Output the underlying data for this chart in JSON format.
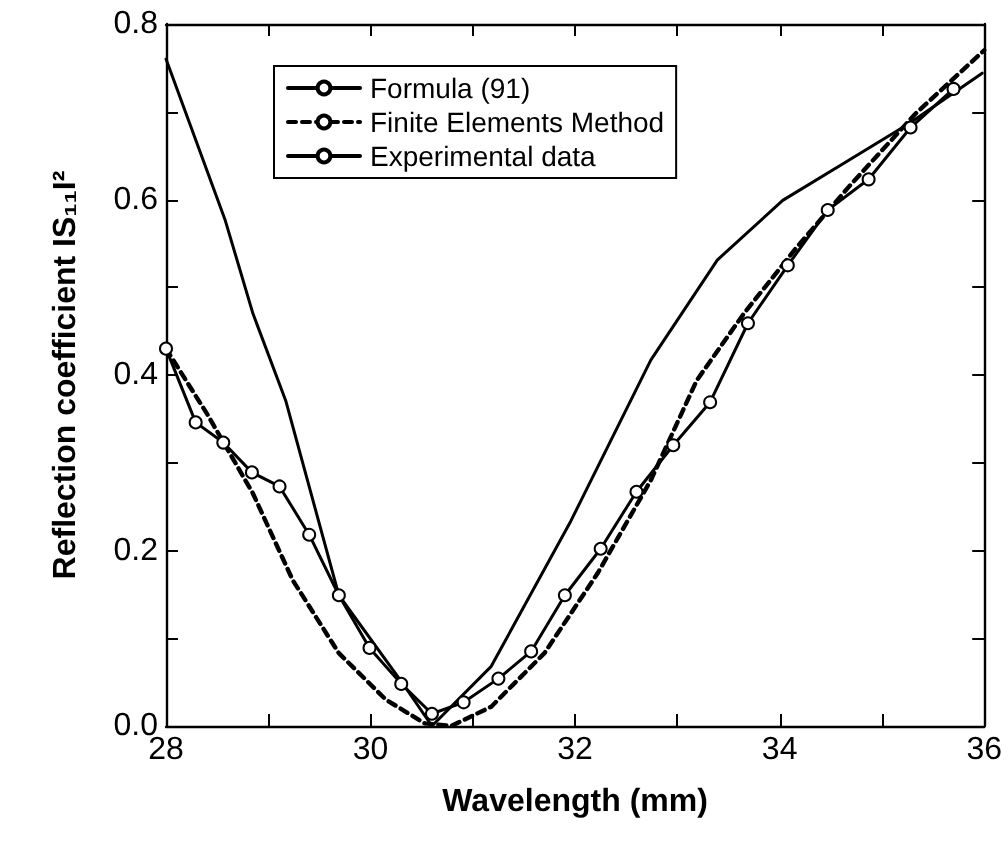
{
  "chart_data": {
    "type": "line",
    "xlabel": "Wavelength (mm)",
    "ylabel": "Reflection coefficient IS₁₁I²",
    "xlim": [
      28,
      36
    ],
    "ylim": [
      0,
      0.8
    ],
    "xticks": [
      28,
      {
        "value": 29,
        "label": null
      },
      30,
      {
        "value": 31,
        "label": null
      },
      32,
      {
        "value": 33,
        "label": null
      },
      34,
      {
        "value": 35,
        "label": null
      },
      36
    ],
    "yticks": [
      {
        "value": 0,
        "label": "0.0"
      },
      {
        "value": 0.1,
        "label": null
      },
      {
        "value": 0.2,
        "label": "0.2"
      },
      {
        "value": 0.3,
        "label": null
      },
      {
        "value": 0.4,
        "label": "0.4"
      },
      {
        "value": 0.5,
        "label": null
      },
      {
        "value": 0.6,
        "label": "0.6"
      },
      {
        "value": 0.7,
        "label": null
      },
      {
        "value": 0.8,
        "label": "0.8"
      }
    ],
    "legend": "top left",
    "grid": false,
    "series": [
      {
        "name": "Formula (91)",
        "color": "#000000",
        "line_style": "solid",
        "marker": "none",
        "x": [
          28,
          28.58,
          28.85,
          29.17,
          29.69,
          30.33,
          30.6,
          31.18,
          31.96,
          32.74,
          33.39,
          34.03,
          34.68,
          35.27,
          35.98
        ],
        "values": [
          0.76,
          0.576,
          0.47,
          0.371,
          0.149,
          0.046,
          0.0,
          0.068,
          0.234,
          0.417,
          0.531,
          0.599,
          0.645,
          0.687,
          0.744
        ]
      },
      {
        "name": "Finite Elements Method",
        "color": "#000000",
        "line_style": "dashed",
        "marker": "none",
        "x": [
          28,
          28.4,
          28.85,
          29.24,
          29.69,
          30.15,
          30.53,
          30.79,
          31.18,
          31.7,
          32.22,
          32.74,
          33.19,
          33.65,
          34.17,
          34.68,
          35.33,
          36
        ],
        "values": [
          0.43,
          0.356,
          0.265,
          0.166,
          0.083,
          0.03,
          0.003,
          0.0,
          0.022,
          0.083,
          0.174,
          0.28,
          0.394,
          0.47,
          0.546,
          0.615,
          0.698,
          0.77
        ]
      },
      {
        "name": "Experimental data",
        "color": "#000000",
        "line_style": "solid",
        "marker": "circle",
        "x": [
          28,
          28.29,
          28.56,
          28.84,
          29.11,
          29.4,
          29.69,
          29.99,
          30.3,
          30.6,
          30.91,
          31.25,
          31.57,
          31.9,
          32.25,
          32.6,
          32.96,
          33.32,
          33.69,
          34.08,
          34.47,
          34.87,
          35.28,
          35.7
        ],
        "values": [
          0.43,
          0.346,
          0.323,
          0.289,
          0.273,
          0.218,
          0.149,
          0.089,
          0.048,
          0.014,
          0.027,
          0.054,
          0.085,
          0.149,
          0.202,
          0.267,
          0.32,
          0.369,
          0.459,
          0.525,
          0.588,
          0.623,
          0.682,
          0.726
        ]
      }
    ]
  }
}
